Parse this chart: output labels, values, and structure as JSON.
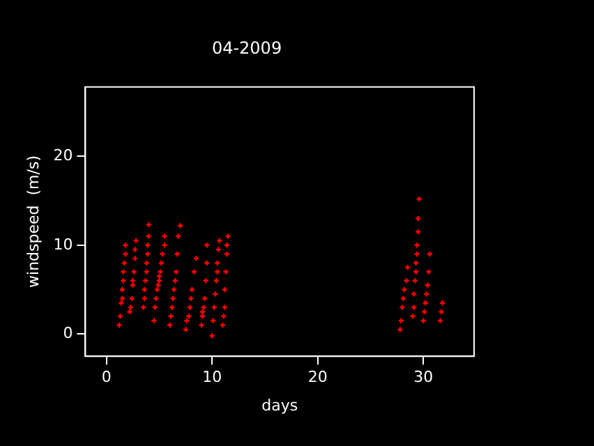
{
  "chart_data": {
    "type": "scatter",
    "title": "04-2009",
    "xlabel": "days",
    "ylabel": "windspeed  (m/s)",
    "xlim": [
      -2,
      34.8
    ],
    "ylim": [
      -2.5,
      27.8
    ],
    "xticks": [
      0,
      10,
      20,
      30
    ],
    "yticks": [
      0,
      10,
      20
    ],
    "grid": false,
    "legend": false,
    "marker": "cross",
    "series": [
      {
        "color": "#ff0000",
        "x": [
          1.2,
          1.3,
          1.4,
          1.5,
          1.5,
          1.6,
          1.6,
          1.7,
          1.8,
          1.8,
          2.2,
          2.3,
          2.4,
          2.5,
          2.5,
          2.6,
          2.7,
          2.7,
          2.8,
          3.5,
          3.6,
          3.6,
          3.7,
          3.8,
          3.8,
          3.9,
          3.9,
          4.0,
          4.0,
          4.5,
          4.6,
          4.7,
          4.8,
          4.9,
          5.0,
          5.0,
          5.1,
          5.2,
          5.3,
          5.5,
          5.5,
          6.0,
          6.1,
          6.2,
          6.3,
          6.4,
          6.5,
          6.6,
          6.7,
          6.8,
          7.0,
          7.5,
          7.6,
          7.8,
          7.9,
          8.0,
          8.1,
          8.3,
          8.5,
          9.0,
          9.1,
          9.1,
          9.2,
          9.3,
          9.4,
          9.5,
          9.5,
          10.0,
          10.1,
          10.2,
          10.3,
          10.4,
          10.5,
          10.5,
          10.6,
          10.7,
          11.0,
          11.1,
          11.2,
          11.2,
          11.3,
          11.4,
          11.4,
          11.5,
          27.8,
          27.9,
          28.0,
          28.1,
          28.2,
          28.4,
          28.5,
          29.0,
          29.1,
          29.1,
          29.2,
          29.3,
          29.3,
          29.4,
          29.4,
          29.5,
          29.5,
          29.6,
          30.0,
          30.1,
          30.2,
          30.3,
          30.4,
          30.5,
          30.6,
          31.6,
          31.7,
          31.8
        ],
        "values": [
          1,
          2,
          3.5,
          4,
          5,
          6,
          7,
          8,
          9,
          10,
          2.5,
          3,
          4,
          5.5,
          6,
          7,
          8.5,
          9.5,
          10.5,
          3,
          4,
          5,
          6,
          7,
          8,
          9,
          10,
          11,
          12.3,
          1.5,
          3,
          4,
          5,
          5.5,
          6,
          6.5,
          7,
          8,
          9,
          10,
          11,
          1,
          2,
          3,
          4,
          5,
          6,
          7,
          9,
          11,
          12.2,
          0.5,
          1.5,
          2,
          3,
          4,
          5,
          7,
          8.5,
          1,
          2,
          2.5,
          3,
          4,
          6,
          8,
          10,
          -0.2,
          1.5,
          3,
          4.5,
          6,
          7,
          8,
          9.5,
          10.5,
          1,
          2,
          3,
          5,
          7,
          9,
          10,
          11,
          0.5,
          1.5,
          3,
          4,
          5,
          6,
          7.5,
          2,
          3,
          4.5,
          6,
          7,
          8,
          9,
          10,
          11.5,
          13,
          15.2,
          1.5,
          2.5,
          3.5,
          4.5,
          5.5,
          7,
          9,
          1.5,
          2.5,
          3.5
        ]
      }
    ]
  }
}
